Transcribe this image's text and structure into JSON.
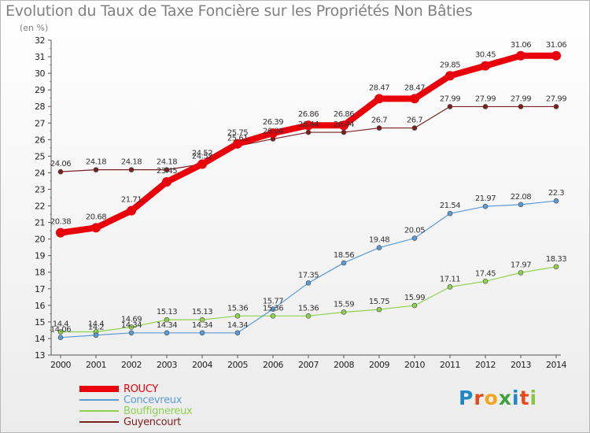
{
  "title": "Evolution du Taux de Taxe Foncière sur les Propriétés Non Bâties",
  "subtitle": "(en %)",
  "logo": [
    "P",
    "r",
    "o",
    "x",
    "i",
    "t",
    "i"
  ],
  "chart_data": {
    "type": "line",
    "x": [
      "2000",
      "2001",
      "2002",
      "2003",
      "2004",
      "2005",
      "2006",
      "2007",
      "2008",
      "2009",
      "2010",
      "2011",
      "2012",
      "2013",
      "2014"
    ],
    "ylim": [
      13,
      32
    ],
    "yticks": [
      13,
      14,
      15,
      16,
      17,
      18,
      19,
      20,
      21,
      22,
      23,
      24,
      25,
      26,
      27,
      28,
      29,
      30,
      31,
      32
    ],
    "grid": false,
    "legend_position": "bottom-left",
    "series": [
      {
        "name": "ROUCY",
        "color": "#e8000b",
        "values": [
          20.38,
          20.68,
          21.71,
          23.45,
          24.52,
          25.75,
          26.39,
          26.86,
          26.86,
          28.47,
          28.47,
          29.85,
          30.45,
          31.06,
          31.06
        ],
        "labels": [
          "20.38",
          "20.68",
          "21.71",
          "23.45",
          "24.52",
          "25.75",
          "26.39",
          "26.86",
          "26.86",
          "28.47",
          "28.47",
          "29.85",
          "30.45",
          "31.06",
          "31.06"
        ]
      },
      {
        "name": "Concevreux",
        "color": "#5b9bd5",
        "values": [
          14.06,
          14.2,
          14.34,
          14.34,
          14.34,
          14.34,
          15.77,
          17.35,
          18.56,
          19.48,
          20.05,
          21.54,
          21.97,
          22.08,
          22.3
        ],
        "labels": [
          "14.06",
          "14.2",
          "14.34",
          "14.34",
          "14.34",
          "14.34",
          "15.77",
          "17.35",
          "18.56",
          "19.48",
          "20.05",
          "21.54",
          "21.97",
          "22.08",
          "22.3"
        ]
      },
      {
        "name": "Bouffignereux",
        "color": "#8fd14f",
        "values": [
          14.4,
          14.4,
          14.69,
          15.13,
          15.13,
          15.36,
          15.36,
          15.36,
          15.59,
          15.75,
          15.99,
          17.11,
          17.45,
          17.97,
          18.33
        ],
        "labels": [
          "14.4",
          "14.4",
          "14.69",
          "15.13",
          "15.13",
          "15.36",
          "15.36",
          "15.36",
          "15.59",
          "15.75",
          "15.99",
          "17.11",
          "17.45",
          "17.97",
          "18.33"
        ]
      },
      {
        "name": "Guyencourt",
        "color": "#7b1f1f",
        "values": [
          24.06,
          24.18,
          24.18,
          24.18,
          24.52,
          25.61,
          26.04,
          26.44,
          26.44,
          26.7,
          26.7,
          27.99,
          27.99,
          27.99,
          27.99
        ],
        "labels": [
          "24.06",
          "24.18",
          "24.18",
          "24.18",
          "24.52",
          "25.61",
          "26.04",
          "26.44",
          "26.44",
          "26.7",
          "26.7",
          "27.99",
          "27.99",
          "27.99",
          "27.99"
        ]
      }
    ]
  }
}
